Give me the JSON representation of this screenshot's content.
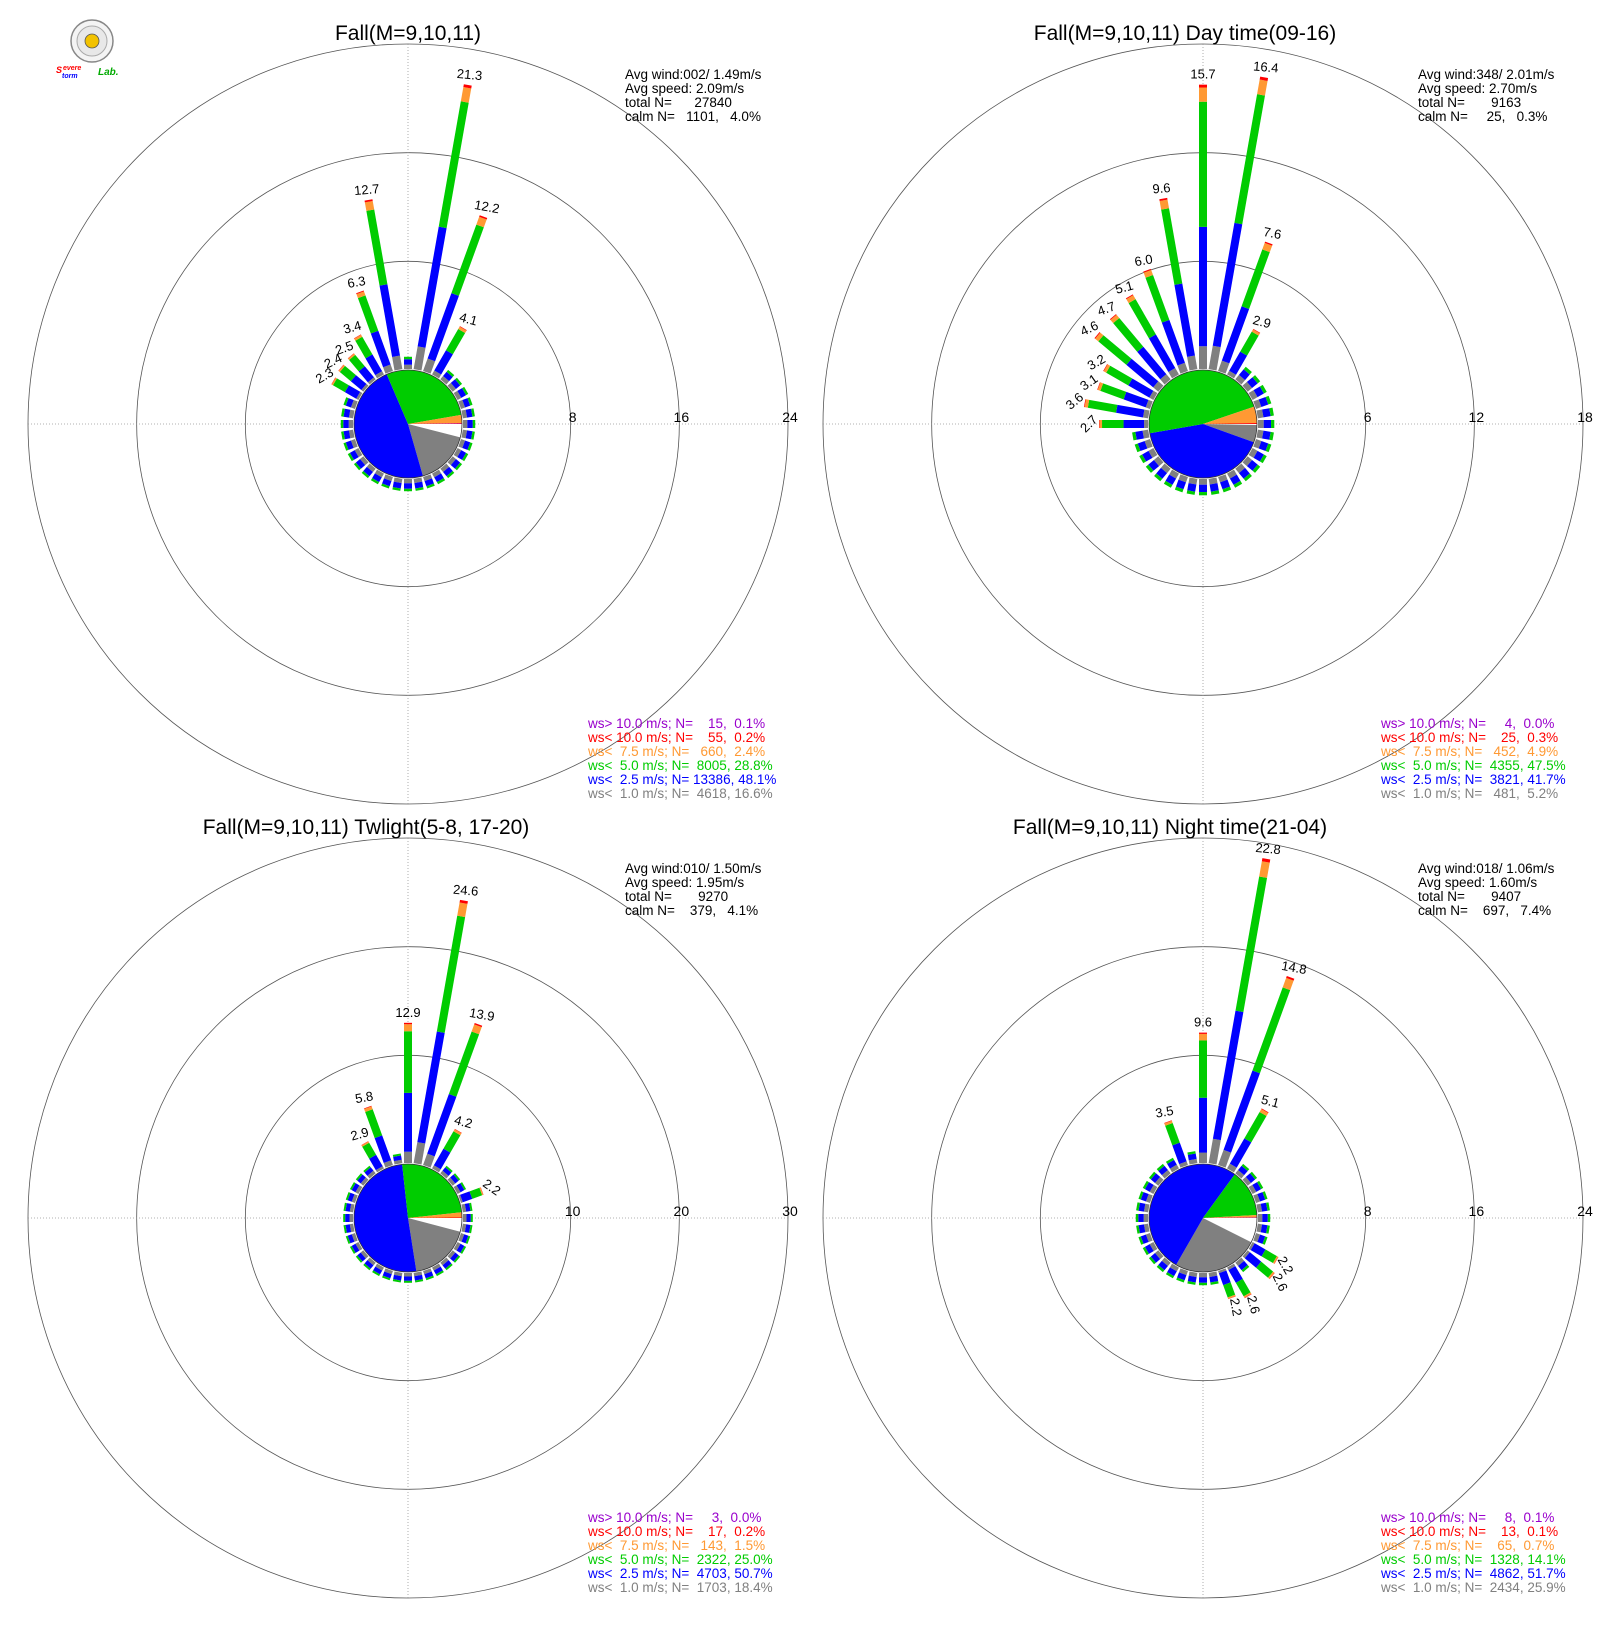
{
  "logo": {
    "line1": "Severe",
    "line2": "Storm",
    "line3": "Lab."
  },
  "colors": {
    "gt10": "#9900cc",
    "lt10": "#ff0000",
    "lt75": "#ff9933",
    "lt5": "#00cc00",
    "lt25": "#0000ff",
    "lt1": "#808080",
    "calm": "#ffffff"
  },
  "chart_data": [
    {
      "type": "wind-rose",
      "title": "Fall(M=9,10,11)",
      "rmax": 24,
      "ticks": [
        "8",
        "16",
        "24"
      ],
      "stats": [
        "Avg wind:002/ 1.49m/s",
        "Avg speed: 2.09m/s",
        "total N=      27840",
        "calm N=   1101,   4.0%"
      ],
      "legend": [
        "ws> 10.0 m/s; N=    15,  0.1%",
        "ws< 10.0 m/s; N=    55,  0.2%",
        "ws<  7.5 m/s; N=   660,  2.4%",
        "ws<  5.0 m/s; N=  8005, 28.8%",
        "ws<  2.5 m/s; N= 13386, 48.1%",
        "ws<  1.0 m/s; N=  4618, 16.6%"
      ],
      "pie": [
        4.0,
        16.6,
        48.1,
        28.8,
        2.4,
        0.2,
        0.1
      ],
      "bars": [
        {
          "dir": 350,
          "total": 12.7,
          "labeled": true
        },
        {
          "dir": 10,
          "total": 21.3,
          "labeled": true
        },
        {
          "dir": 20,
          "total": 12.2,
          "labeled": true
        },
        {
          "dir": 30,
          "total": 4.1,
          "labeled": true
        },
        {
          "dir": 340,
          "total": 6.3,
          "labeled": true
        },
        {
          "dir": 330,
          "total": 3.4,
          "labeled": true
        },
        {
          "dir": 320,
          "total": 2.5,
          "labeled": true
        },
        {
          "dir": 310,
          "total": 2.4,
          "labeled": true
        },
        {
          "dir": 300,
          "total": 2.3,
          "labeled": true
        }
      ]
    },
    {
      "type": "wind-rose",
      "title": "Fall(M=9,10,11) Day time(09-16)",
      "rmax": 18,
      "ticks": [
        "6",
        "12",
        "18"
      ],
      "stats": [
        "Avg wind:348/ 2.01m/s",
        "Avg speed: 2.70m/s",
        "total N=       9163",
        "calm N=     25,   0.3%"
      ],
      "legend": [
        "ws> 10.0 m/s; N=     4,  0.0%",
        "ws< 10.0 m/s; N=    25,  0.3%",
        "ws<  7.5 m/s; N=   452,  4.9%",
        "ws<  5.0 m/s; N=  4355, 47.5%",
        "ws<  2.5 m/s; N=  3821, 41.7%",
        "ws<  1.0 m/s; N=   481,  5.2%"
      ],
      "pie": [
        0.3,
        5.2,
        41.7,
        47.5,
        4.9,
        0.3,
        0.0
      ],
      "bars": [
        {
          "dir": 360,
          "total": 15.7,
          "labeled": true
        },
        {
          "dir": 10,
          "total": 16.4,
          "labeled": true
        },
        {
          "dir": 20,
          "total": 7.6,
          "labeled": true
        },
        {
          "dir": 30,
          "total": 2.9,
          "labeled": true
        },
        {
          "dir": 350,
          "total": 9.6,
          "labeled": true
        },
        {
          "dir": 340,
          "total": 6.0,
          "labeled": true
        },
        {
          "dir": 330,
          "total": 5.1,
          "labeled": true
        },
        {
          "dir": 320,
          "total": 4.7,
          "labeled": true
        },
        {
          "dir": 310,
          "total": 4.6,
          "labeled": true
        },
        {
          "dir": 300,
          "total": 3.2,
          "labeled": true
        },
        {
          "dir": 290,
          "total": 3.1,
          "labeled": true
        },
        {
          "dir": 280,
          "total": 3.6,
          "labeled": true
        },
        {
          "dir": 270,
          "total": 2.7,
          "labeled": true
        }
      ]
    },
    {
      "type": "wind-rose",
      "title": "Fall(M=9,10,11) Twlight(5-8, 17-20)",
      "rmax": 30,
      "ticks": [
        "10",
        "20",
        "30"
      ],
      "stats": [
        "Avg wind:010/ 1.50m/s",
        "Avg speed: 1.95m/s",
        "total N=       9270",
        "calm N=    379,   4.1%"
      ],
      "legend": [
        "ws> 10.0 m/s; N=     3,  0.0%",
        "ws< 10.0 m/s; N=    17,  0.2%",
        "ws<  7.5 m/s; N=   143,  1.5%",
        "ws<  5.0 m/s; N=  2322, 25.0%",
        "ws<  2.5 m/s; N=  4703, 50.7%",
        "ws<  1.0 m/s; N=  1703, 18.4%"
      ],
      "pie": [
        4.1,
        18.4,
        50.7,
        25.0,
        1.5,
        0.2,
        0.0
      ],
      "bars": [
        {
          "dir": 360,
          "total": 12.9,
          "labeled": true
        },
        {
          "dir": 10,
          "total": 24.6,
          "labeled": true
        },
        {
          "dir": 20,
          "total": 13.9,
          "labeled": true
        },
        {
          "dir": 30,
          "total": 4.2,
          "labeled": true
        },
        {
          "dir": 340,
          "total": 5.8,
          "labeled": true
        },
        {
          "dir": 330,
          "total": 2.9,
          "labeled": true
        },
        {
          "dir": 70,
          "total": 2.2,
          "labeled": true
        }
      ]
    },
    {
      "type": "wind-rose",
      "title": "Fall(M=9,10,11) Night time(21-04)",
      "rmax": 24,
      "ticks": [
        "8",
        "16",
        "24"
      ],
      "stats": [
        "Avg wind:018/ 1.06m/s",
        "Avg speed: 1.60m/s",
        "total N=       9407",
        "calm N=    697,   7.4%"
      ],
      "legend": [
        "ws> 10.0 m/s; N=     8,  0.1%",
        "ws< 10.0 m/s; N=    13,  0.1%",
        "ws<  7.5 m/s; N=    65,  0.7%",
        "ws<  5.0 m/s; N=  1328, 14.1%",
        "ws<  2.5 m/s; N=  4862, 51.7%",
        "ws<  1.0 m/s; N=  2434, 25.9%"
      ],
      "pie": [
        7.4,
        25.9,
        51.7,
        14.1,
        0.7,
        0.1,
        0.1
      ],
      "bars": [
        {
          "dir": 10,
          "total": 22.8,
          "labeled": true
        },
        {
          "dir": 20,
          "total": 14.8,
          "labeled": true
        },
        {
          "dir": 30,
          "total": 5.1,
          "labeled": true
        },
        {
          "dir": 360,
          "total": 9.6,
          "labeled": true
        },
        {
          "dir": 340,
          "total": 3.5,
          "labeled": true
        },
        {
          "dir": 120,
          "total": 2.2,
          "labeled": true
        },
        {
          "dir": 130,
          "total": 2.6,
          "labeled": true
        },
        {
          "dir": 150,
          "total": 2.6,
          "labeled": true
        },
        {
          "dir": 160,
          "total": 2.2,
          "labeled": true
        }
      ]
    }
  ]
}
